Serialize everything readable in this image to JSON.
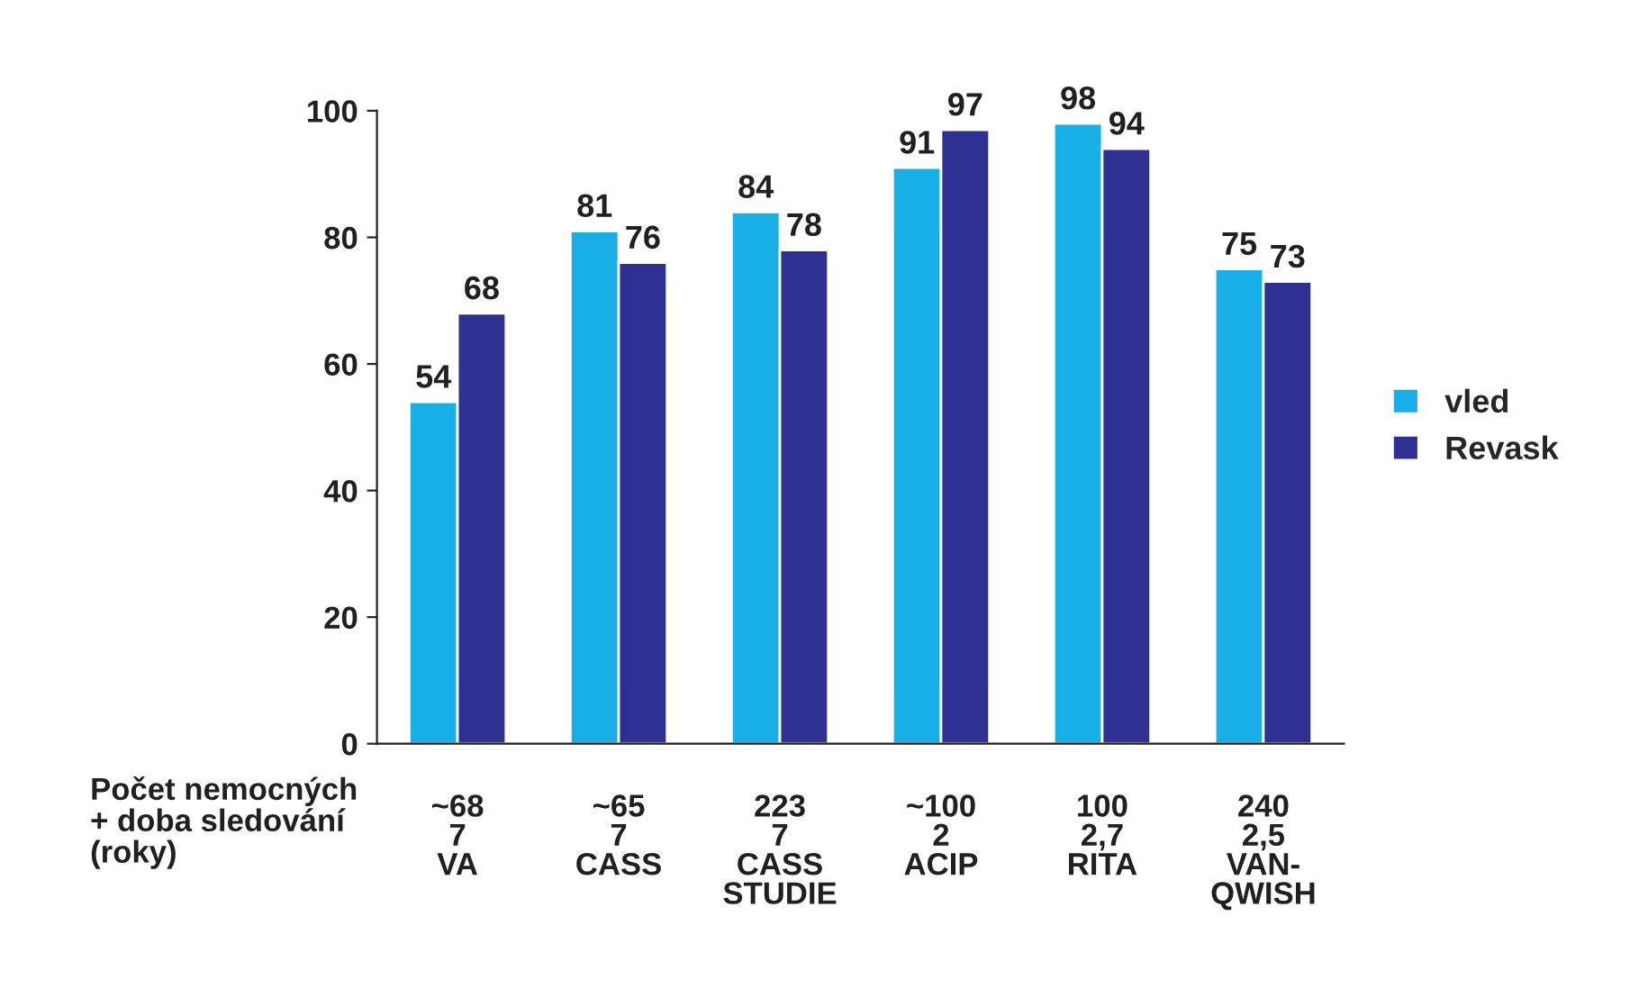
{
  "chart_data": {
    "type": "bar",
    "categories": [
      "~68\n7\nVA",
      "~65\n7\nCASS",
      "223\n7\nCASS\nSTUDIE",
      "~100\n2\nACIP",
      "100\n2,7\nRITA",
      "240\n2,5\nVAN-\nQWISH"
    ],
    "series": [
      {
        "name": "vled",
        "color": "#18aee6",
        "values": [
          54,
          81,
          84,
          91,
          98,
          75
        ]
      },
      {
        "name": "Revask",
        "color": "#2e3192",
        "values": [
          68,
          76,
          78,
          97,
          94,
          73
        ]
      }
    ],
    "ylim": [
      0,
      100
    ],
    "yticks": [
      0,
      20,
      40,
      60,
      80,
      100
    ],
    "data_labels": true,
    "grid": false,
    "legend": "right",
    "annotations": [
      "Počet nemocných\n+ doba sledování\n(roky)"
    ]
  }
}
